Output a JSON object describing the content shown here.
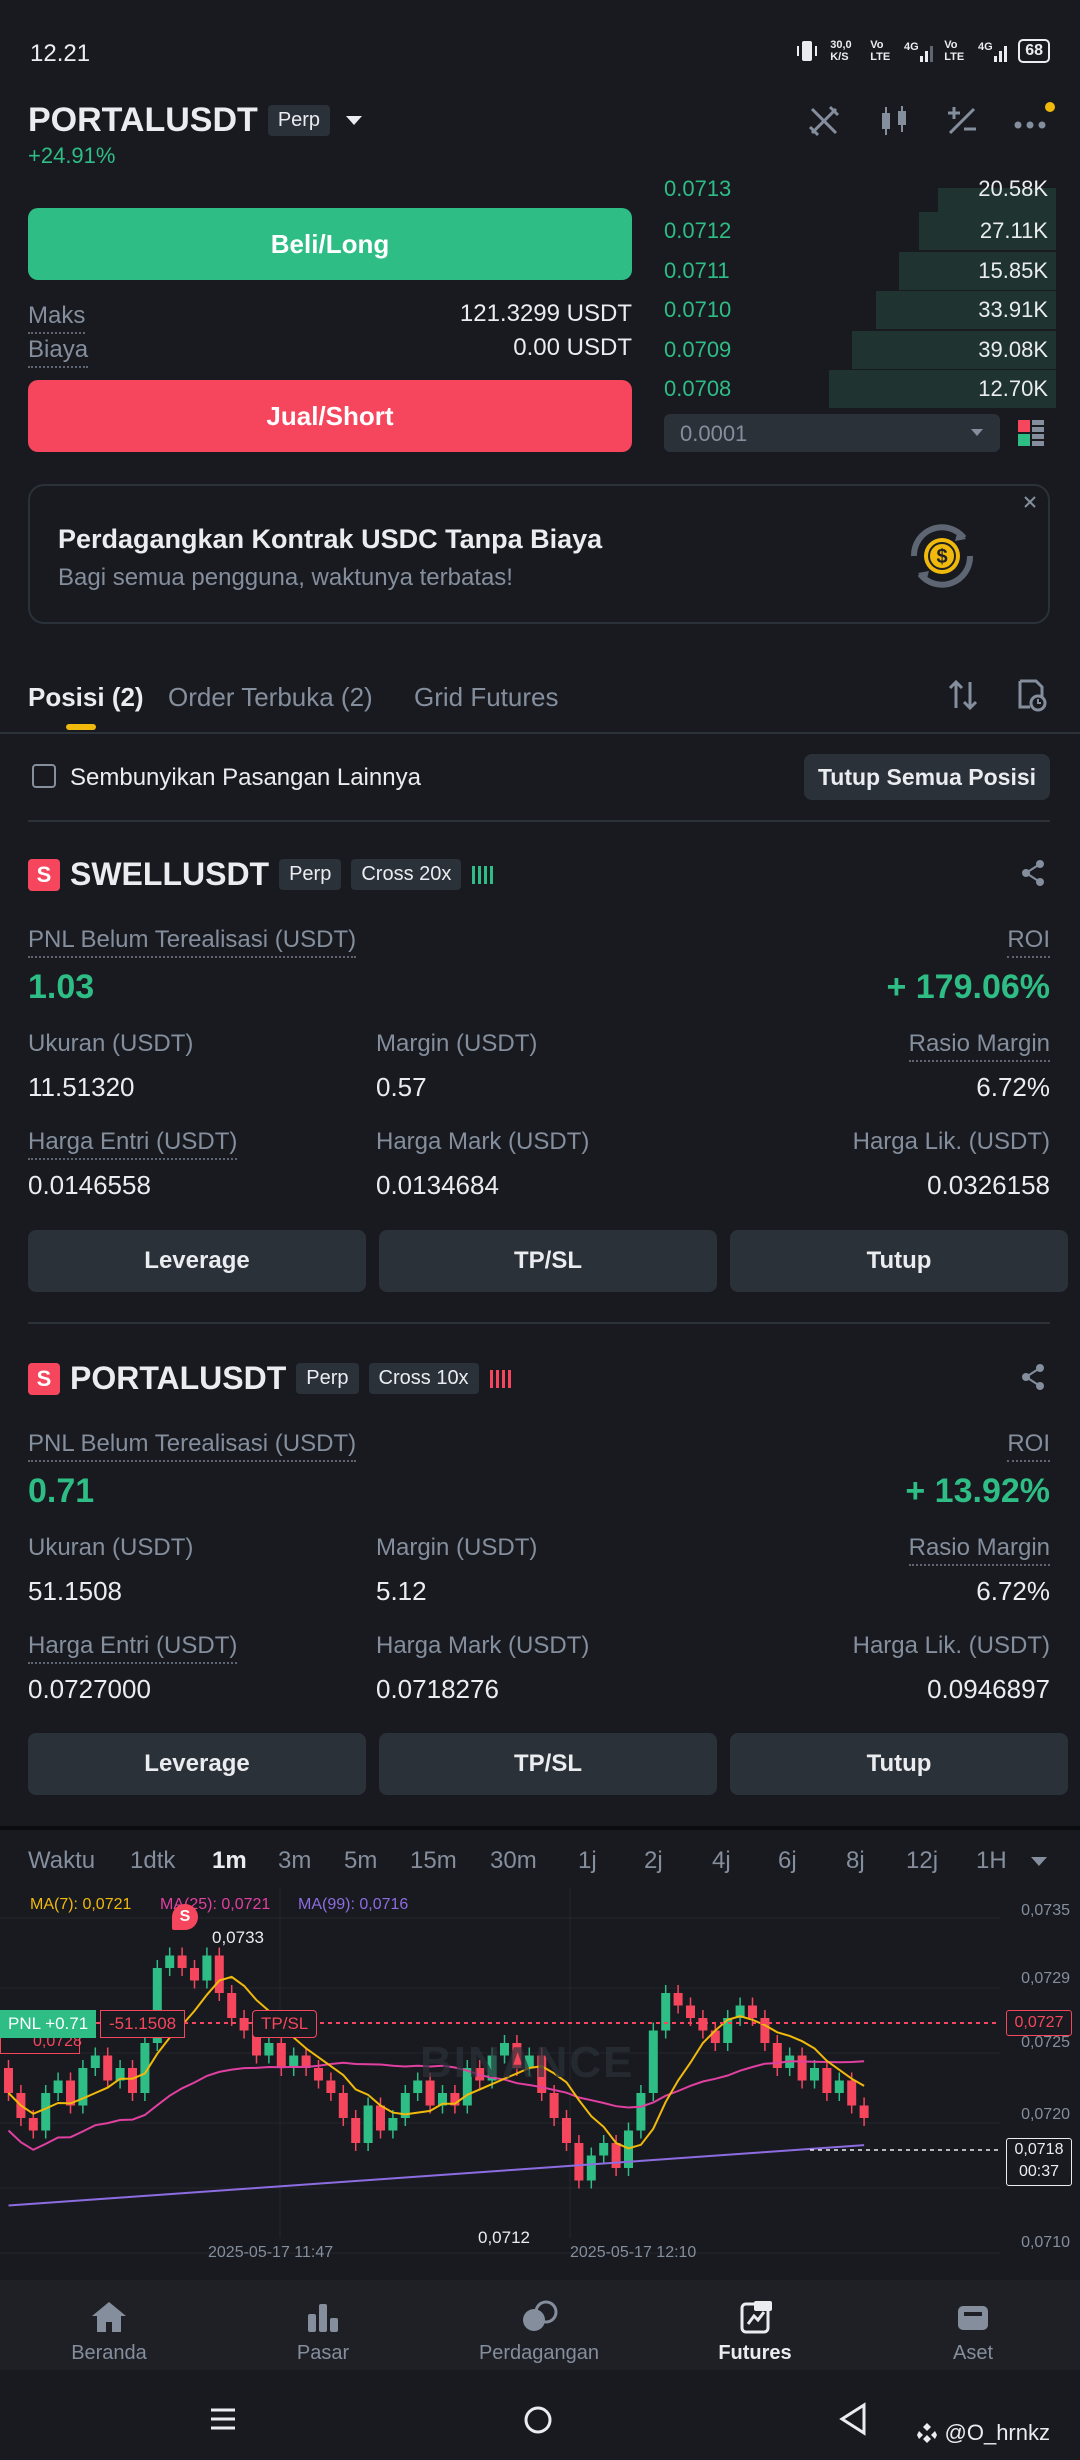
{
  "status_bar": {
    "time": "12.21",
    "net_speed": "30,0 K/S",
    "battery": "68",
    "sim1": "Vo LTE",
    "sim2": "Vo LTE",
    "signal": "4G"
  },
  "header": {
    "symbol": "PORTALUSDT",
    "tag": "Perp",
    "change": "+24.91%"
  },
  "trade": {
    "buy_label": "Beli/Long",
    "max_label": "Maks",
    "max_value": "121.3299 USDT",
    "fee_label": "Biaya",
    "fee_value": "0.00 USDT",
    "sell_label": "Jual/Short"
  },
  "orderbook": {
    "rows": [
      {
        "price": "0.0713",
        "qty": "20.58K",
        "depth": 0.3
      },
      {
        "price": "0.0712",
        "qty": "27.11K",
        "depth": 0.35
      },
      {
        "price": "0.0711",
        "qty": "15.85K",
        "depth": 0.4
      },
      {
        "price": "0.0710",
        "qty": "33.91K",
        "depth": 0.46
      },
      {
        "price": "0.0709",
        "qty": "39.08K",
        "depth": 0.52
      },
      {
        "price": "0.0708",
        "qty": "12.70K",
        "depth": 0.58
      }
    ],
    "precision": "0.0001"
  },
  "promo": {
    "title": "Perdagangkan Kontrak USDC Tanpa Biaya",
    "subtitle": "Bagi semua pengguna, waktunya terbatas!"
  },
  "tabs": {
    "positions": "Posisi (2)",
    "open_orders": "Order Terbuka (2)",
    "grid": "Grid Futures"
  },
  "filter": {
    "hide_label": "Sembunyikan Pasangan Lainnya",
    "close_all": "Tutup Semua Posisi"
  },
  "positions": [
    {
      "side": "S",
      "symbol": "SWELLUSDT",
      "type": "Perp",
      "mode": "Cross 20x",
      "pnl_label": "PNL Belum Terealisasi (USDT)",
      "pnl": "1.03",
      "roi_label": "ROI",
      "roi": "+ 179.06%",
      "size_label": "Ukuran (USDT)",
      "size": "11.51320",
      "margin_label": "Margin (USDT)",
      "margin": "0.57",
      "ratio_label": "Rasio Margin",
      "ratio": "6.72%",
      "entry_label": "Harga Entri (USDT)",
      "entry": "0.0146558",
      "mark_label": "Harga Mark (USDT)",
      "mark": "0.0134684",
      "liq_label": "Harga Lik. (USDT)",
      "liq": "0.0326158",
      "btn_leverage": "Leverage",
      "btn_tpsl": "TP/SL",
      "btn_close": "Tutup"
    },
    {
      "side": "S",
      "symbol": "PORTALUSDT",
      "type": "Perp",
      "mode": "Cross 10x",
      "pnl_label": "PNL Belum Terealisasi (USDT)",
      "pnl": "0.71",
      "roi_label": "ROI",
      "roi": "+ 13.92%",
      "size_label": "Ukuran (USDT)",
      "size": "51.1508",
      "margin_label": "Margin (USDT)",
      "margin": "5.12",
      "ratio_label": "Rasio Margin",
      "ratio": "6.72%",
      "entry_label": "Harga Entri (USDT)",
      "entry": "0.0727000",
      "mark_label": "Harga Mark (USDT)",
      "mark": "0.0718276",
      "liq_label": "Harga Lik. (USDT)",
      "liq": "0.0946897",
      "btn_leverage": "Leverage",
      "btn_tpsl": "TP/SL",
      "btn_close": "Tutup"
    }
  ],
  "timeframes": [
    "Waktu",
    "1dtk",
    "1m",
    "3m",
    "5m",
    "15m",
    "30m",
    "1j",
    "2j",
    "4j",
    "6j",
    "8j",
    "12j",
    "1H"
  ],
  "active_timeframe": "1m",
  "chart": {
    "ma7": "MA(7): 0,0721",
    "ma25": "MA(25): 0,0721",
    "ma99": "MA(99): 0,0716",
    "y_labels": [
      "0,0735",
      "0,0729",
      "0,0725",
      "0,0720",
      "0,0710"
    ],
    "high_label": "0,0733",
    "low_label": "0,0712",
    "pnl_tag": "PNL +0.71",
    "pnl_diff": "-51.1508",
    "tpsl_tag": "TP/SL",
    "entry_tag": "0,0727",
    "price_tag": "0,0718",
    "countdown": "00:37",
    "x_labels": [
      "2025-05-17 11:47",
      "2025-05-17 12:10"
    ],
    "left_price": "0,0728",
    "watermark": "BINANCE"
  },
  "chart_data": {
    "type": "candlestick",
    "ma_series": [
      "MA(7)",
      "MA(25)",
      "MA(99)"
    ],
    "y_range": [
      0.0708,
      0.0736
    ],
    "high": 0.0733,
    "low": 0.0712,
    "last": 0.0718,
    "entry": 0.0727
  },
  "bottom_nav": [
    {
      "label": "Beranda",
      "icon": "home-icon"
    },
    {
      "label": "Pasar",
      "icon": "market-icon"
    },
    {
      "label": "Perdagangan",
      "icon": "trade-icon"
    },
    {
      "label": "Futures",
      "icon": "futures-icon"
    },
    {
      "label": "Aset",
      "icon": "wallet-icon"
    }
  ],
  "active_nav": "Futures",
  "watermark_user": "@O_hrnkz",
  "colors": {
    "green": "#2ebd85",
    "red": "#f6465d",
    "bg": "#181a20",
    "accent": "#f0b90b"
  }
}
